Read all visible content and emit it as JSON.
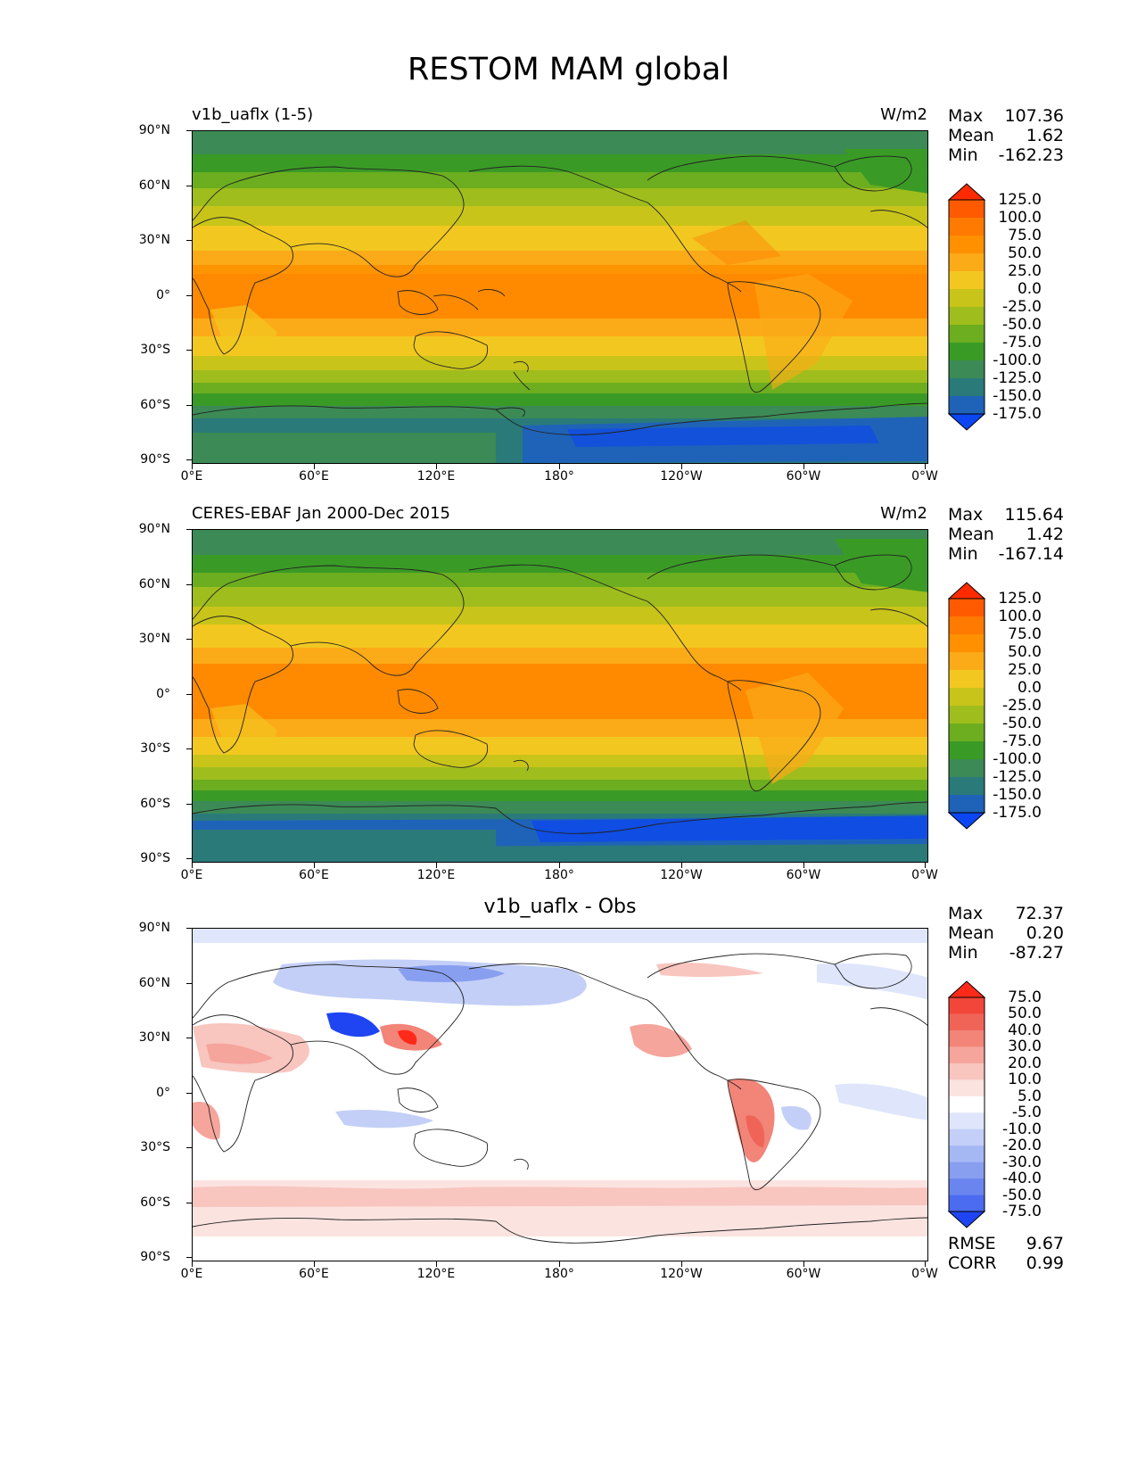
{
  "figure": {
    "title": "RESTOM MAM global",
    "lat_labels": [
      "90°N",
      "60°N",
      "30°N",
      "0°",
      "30°S",
      "60°S",
      "90°S"
    ],
    "lon_labels": [
      "0°E",
      "60°E",
      "120°E",
      "180°",
      "120°W",
      "60°W",
      "0°W"
    ]
  },
  "panels": [
    {
      "left_title": "v1b_uaflx (1-5)",
      "center_title": "",
      "right_title": "W/m2",
      "stats": {
        "max_label": "Max",
        "max": "107.36",
        "mean_label": "Mean",
        "mean": "1.62",
        "min_label": "Min",
        "min": "-162.23"
      },
      "colorbar_labels": [
        "125.0",
        "100.0",
        "75.0",
        "50.0",
        "25.0",
        "0.0",
        "-25.0",
        "-50.0",
        "-75.0",
        "-100.0",
        "-125.0",
        "-150.0",
        "-175.0"
      ],
      "colorbar_colors": [
        "#ff2a00",
        "#ff5a00",
        "#ff7a00",
        "#ff9000",
        "#fbaa18",
        "#f2c820",
        "#c8c41a",
        "#9fbd1c",
        "#6cae1f",
        "#3a9a26",
        "#3c8a56",
        "#2a7a7a",
        "#1f63b8",
        "#0b46f2"
      ],
      "colorbar_triangles": {
        "top": "#ff2a00",
        "bottom": "#0b46f2"
      }
    },
    {
      "left_title": "CERES-EBAF Jan 2000-Dec 2015",
      "center_title": "",
      "right_title": "W/m2",
      "stats": {
        "max_label": "Max",
        "max": "115.64",
        "mean_label": "Mean",
        "mean": "1.42",
        "min_label": "Min",
        "min": "-167.14"
      },
      "colorbar_labels": [
        "125.0",
        "100.0",
        "75.0",
        "50.0",
        "25.0",
        "0.0",
        "-25.0",
        "-50.0",
        "-75.0",
        "-100.0",
        "-125.0",
        "-150.0",
        "-175.0"
      ],
      "colorbar_colors": [
        "#ff2a00",
        "#ff5a00",
        "#ff7a00",
        "#ff9000",
        "#fbaa18",
        "#f2c820",
        "#c8c41a",
        "#9fbd1c",
        "#6cae1f",
        "#3a9a26",
        "#3c8a56",
        "#2a7a7a",
        "#1f63b8",
        "#0b46f2"
      ],
      "colorbar_triangles": {
        "top": "#ff2a00",
        "bottom": "#0b46f2"
      }
    },
    {
      "left_title": "",
      "center_title": "v1b_uaflx - Obs",
      "right_title": "",
      "stats": {
        "max_label": "Max",
        "max": "72.37",
        "mean_label": "Mean",
        "mean": "0.20",
        "min_label": "Min",
        "min": "-87.27"
      },
      "colorbar_labels": [
        "75.0",
        "50.0",
        "40.0",
        "30.0",
        "20.0",
        "10.0",
        "5.0",
        "-5.0",
        "-10.0",
        "-20.0",
        "-30.0",
        "-40.0",
        "-50.0",
        "-75.0"
      ],
      "colorbar_colors": [
        "#ff2a1a",
        "#f2463a",
        "#f06458",
        "#f28478",
        "#f5a59c",
        "#f8c5bf",
        "#fbe3e0",
        "#ffffff",
        "#dfe6fb",
        "#c3cff7",
        "#a6b8f3",
        "#889ff0",
        "#6a86ee",
        "#4b6cf0",
        "#1f45f2"
      ],
      "colorbar_triangles": {
        "top": "#ff2a1a",
        "bottom": "#1f45f2"
      },
      "footer": {
        "rmse_label": "RMSE",
        "rmse": "9.67",
        "corr_label": "CORR",
        "corr": "0.99"
      }
    }
  ]
}
